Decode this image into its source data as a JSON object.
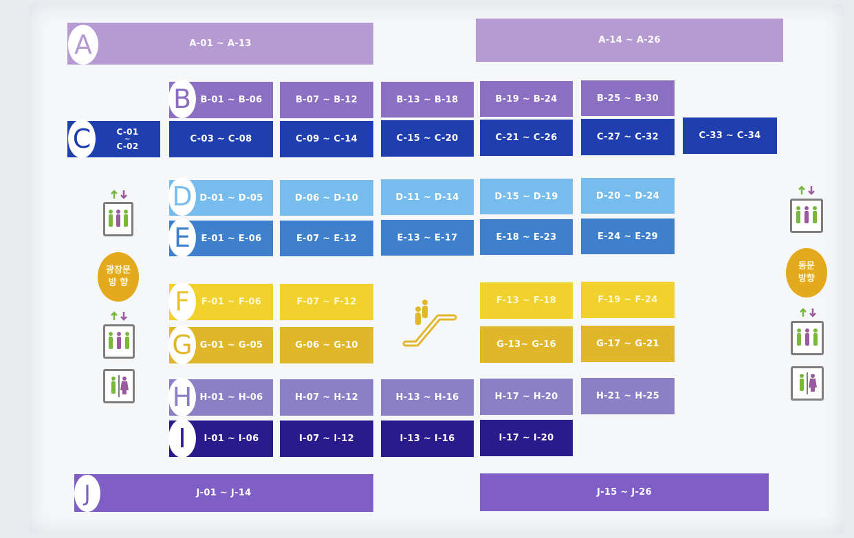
{
  "colors": {
    "A": "#b69ad2",
    "B": "#8a6fc2",
    "C": "#1f3fae",
    "D": "#76bdee",
    "E": "#3e80cc",
    "F": "#f1d12e",
    "G": "#e0b62a",
    "H": "#8b7fc6",
    "I": "#2a1a8c",
    "J": "#7f5ec6",
    "facility_gray": "#7d7d7d",
    "man": "#7ab83c",
    "woman": "#9b5a9e",
    "escalator": "#e3b62a"
  },
  "rows": {
    "A": {
      "letter": "A",
      "blocks": [
        "A-01 ~ A-13",
        "A-14 ~ A-26"
      ]
    },
    "B": {
      "letter": "B",
      "blocks": [
        "B-01 ~ B-06",
        "B-07 ~ B-12",
        "B-13 ~ B-18",
        "B-19 ~ B-24",
        "B-25 ~ B-30"
      ]
    },
    "C": {
      "letter": "C",
      "first_top": "C-01",
      "first_sep": "~",
      "first_bottom": "C-02",
      "blocks": [
        "C-03 ~ C-08",
        "C-09 ~ C-14",
        "C-15 ~ C-20",
        "C-21 ~ C-26",
        "C-27 ~ C-32",
        "C-33 ~ C-34"
      ]
    },
    "D": {
      "letter": "D",
      "blocks": [
        "D-01 ~ D-05",
        "D-06 ~ D-10",
        "D-11 ~ D-14",
        "D-15 ~ D-19",
        "D-20 ~ D-24"
      ]
    },
    "E": {
      "letter": "E",
      "blocks": [
        "E-01 ~ E-06",
        "E-07 ~ E-12",
        "E-13 ~ E-17",
        "E-18 ~ E-23",
        "E-24 ~ E-29"
      ]
    },
    "F": {
      "letter": "F",
      "blocks": [
        "F-01 ~ F-06",
        "F-07 ~ F-12",
        "F-13 ~ F-18",
        "F-19 ~ F-24"
      ]
    },
    "G": {
      "letter": "G",
      "blocks": [
        "G-01 ~ G-05",
        "G-06 ~ G-10",
        "G-13~ G-16",
        "G-17 ~ G-21"
      ]
    },
    "H": {
      "letter": "H",
      "blocks": [
        "H-01 ~ H-06",
        "H-07 ~ H-12",
        "H-13 ~ H-16",
        "H-17 ~ H-20",
        "H-21 ~ H-25"
      ]
    },
    "I": {
      "letter": "I",
      "blocks": [
        "I-01 ~ I-06",
        "I-07 ~ I-12",
        "I-13 ~ I-16",
        "I-17 ~ I-20"
      ]
    },
    "J": {
      "letter": "J",
      "blocks": [
        "J-01 ~ J-14",
        "J-15 ~ J-26"
      ]
    }
  },
  "directions": {
    "left": [
      "광장문",
      "방 향"
    ],
    "right": [
      "동문",
      "방향"
    ]
  },
  "icons": {
    "elevator": "elevator-icon",
    "restroom": "restroom-icon",
    "escalator": "escalator-icon"
  }
}
